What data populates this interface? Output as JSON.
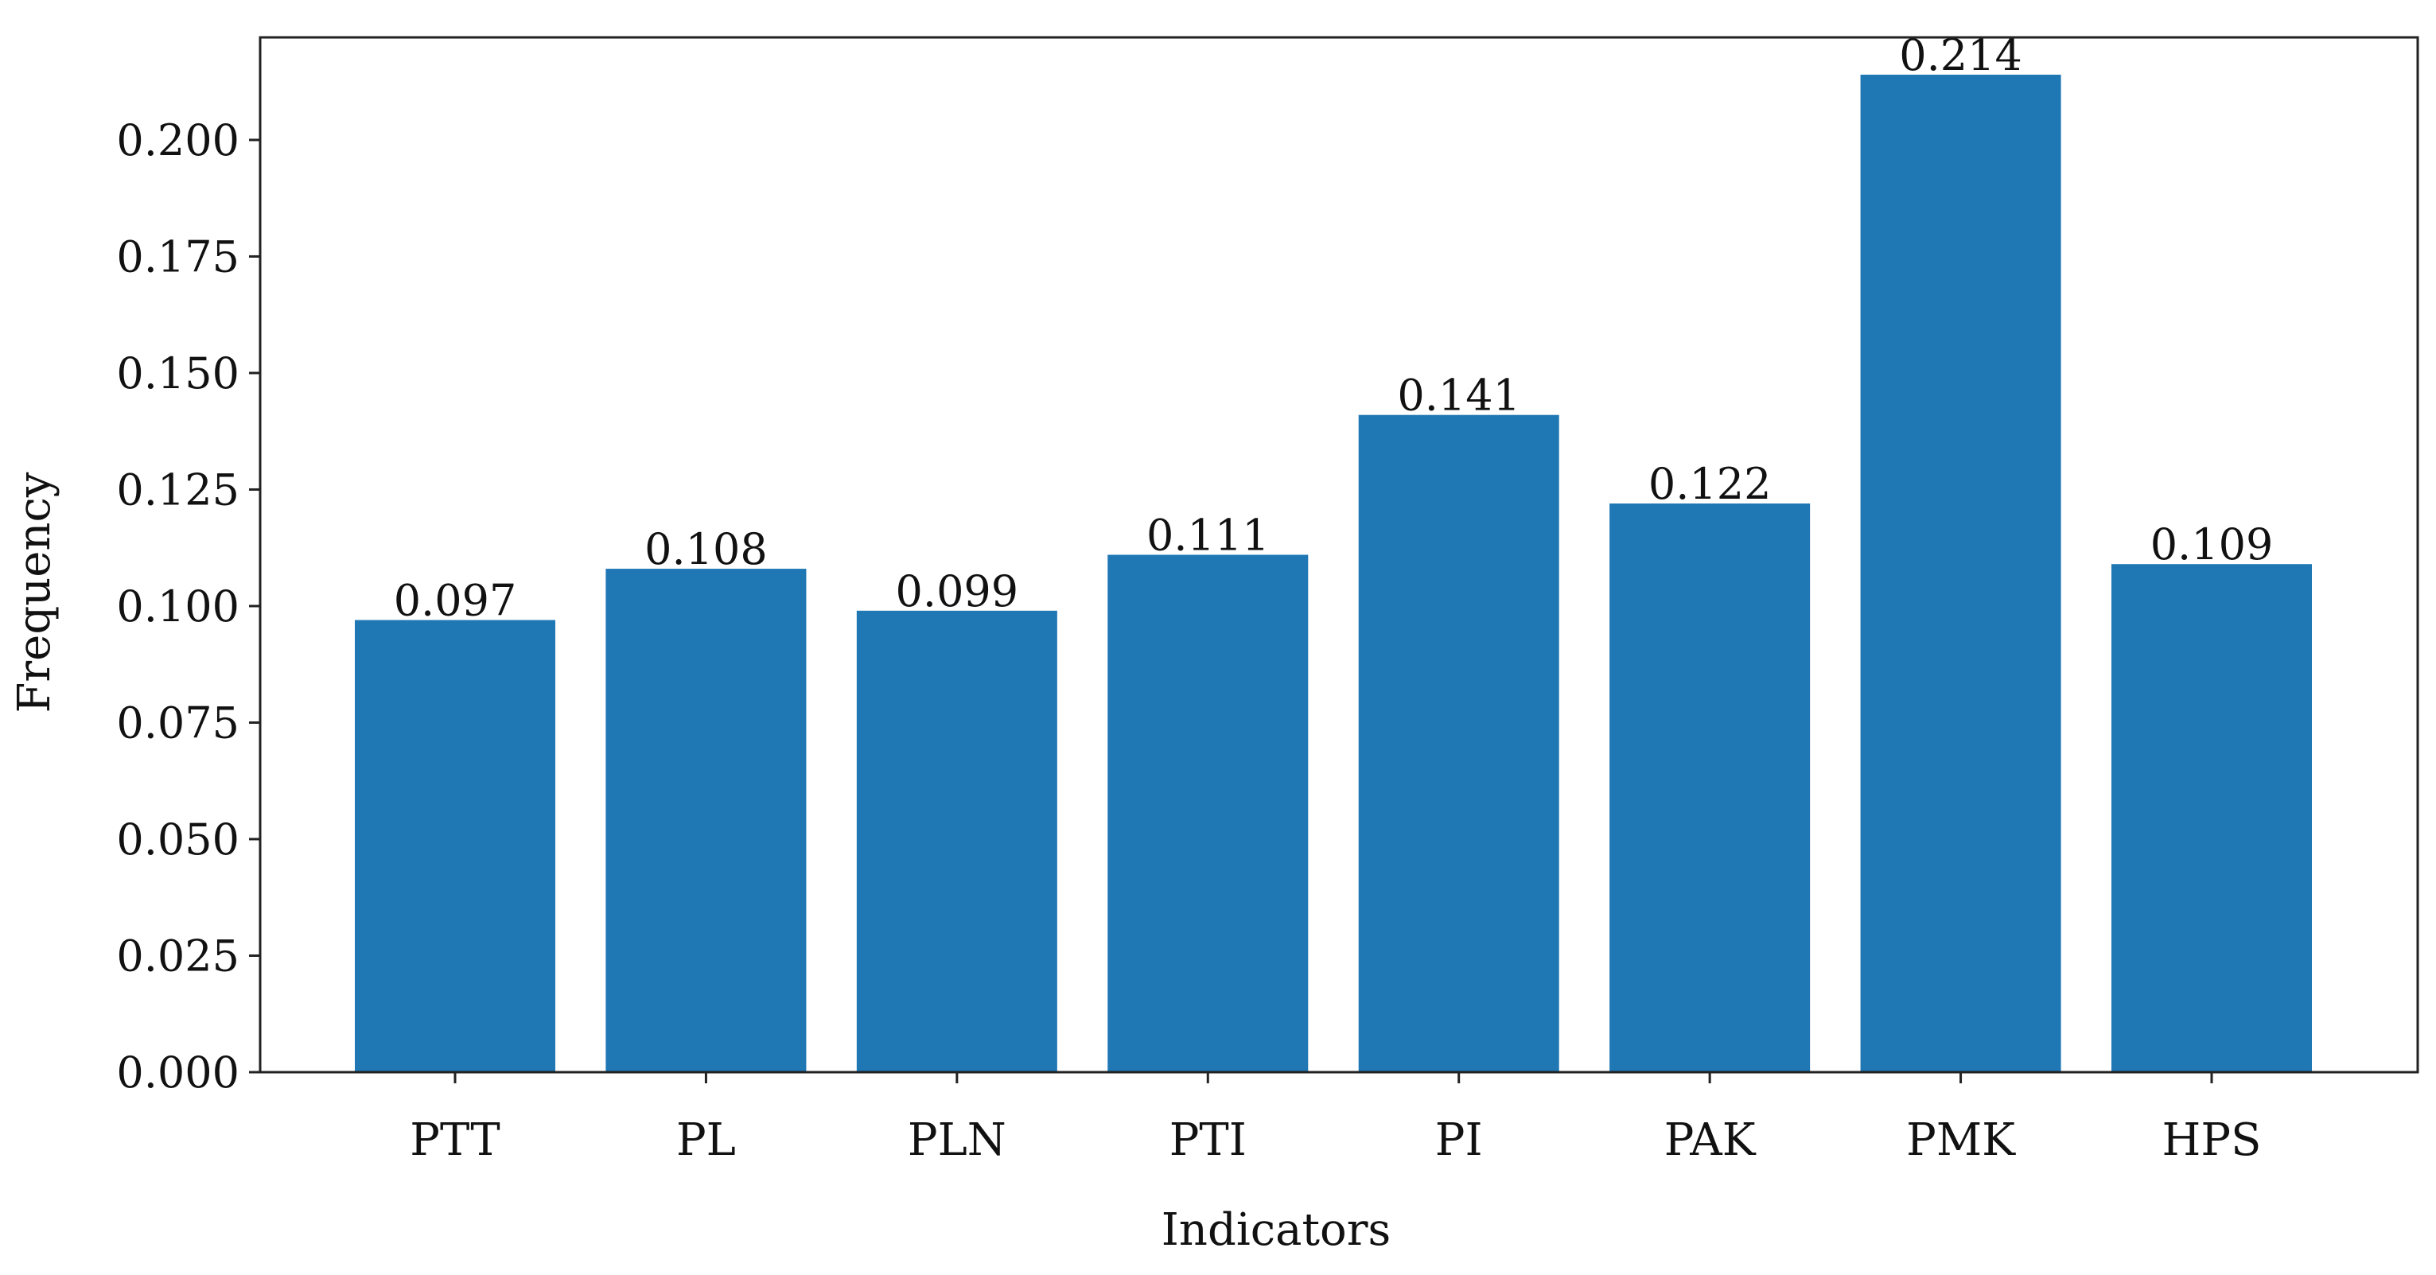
{
  "chart_data": {
    "type": "bar",
    "title": "",
    "xlabel": "Indicators",
    "ylabel": "Frequency",
    "categories": [
      "PTT",
      "PL",
      "PLN",
      "PTI",
      "PI",
      "PAK",
      "PMK",
      "HPS"
    ],
    "values": [
      0.097,
      0.108,
      0.099,
      0.111,
      0.141,
      0.122,
      0.214,
      0.109
    ],
    "value_labels": [
      "0.097",
      "0.108",
      "0.099",
      "0.111",
      "0.141",
      "0.122",
      "0.214",
      "0.109"
    ],
    "ylim": [
      0,
      0.222
    ],
    "yticks": [
      0.0,
      0.025,
      0.05,
      0.075,
      0.1,
      0.125,
      0.15,
      0.175,
      0.2
    ],
    "ytick_labels": [
      "0.000",
      "0.025",
      "0.050",
      "0.075",
      "0.100",
      "0.125",
      "0.150",
      "0.175",
      "0.200"
    ],
    "grid": false,
    "bar_color": "#1f77b4"
  }
}
